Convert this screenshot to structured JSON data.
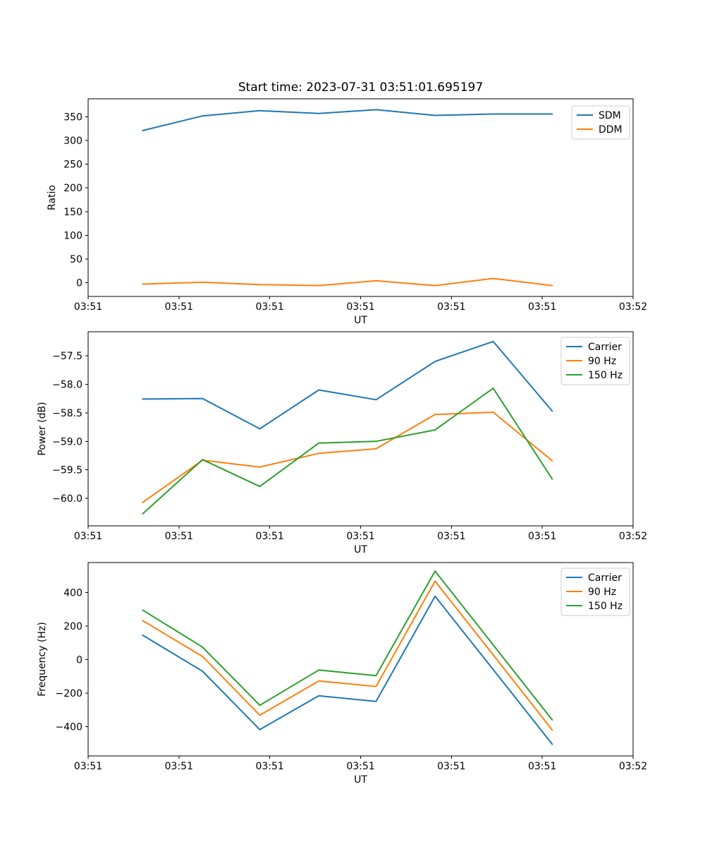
{
  "figure": {
    "title": "Start time: 2023-07-31 03:51:01.695197",
    "background": "#ffffff",
    "text_color": "#000000",
    "spine_color": "#000000",
    "legend_border_color": "#cccccc"
  },
  "chart_data": [
    {
      "type": "line",
      "title": "Start time: 2023-07-31 03:51:01.695197",
      "xlabel": "UT",
      "ylabel": "Ratio",
      "grid": false,
      "legend_position": "upper right",
      "xlim": [
        0,
        60
      ],
      "ylim": [
        -29,
        388
      ],
      "x_ticks": [
        {
          "v": 0,
          "label": "03:51"
        },
        {
          "v": 10,
          "label": "03:51"
        },
        {
          "v": 20,
          "label": "03:51"
        },
        {
          "v": 30,
          "label": "03:51"
        },
        {
          "v": 40,
          "label": "03:51"
        },
        {
          "v": 50,
          "label": "03:51"
        },
        {
          "v": 60,
          "label": "03:52"
        }
      ],
      "y_ticks": [
        {
          "v": 0,
          "label": "0"
        },
        {
          "v": 50,
          "label": "50"
        },
        {
          "v": 100,
          "label": "100"
        },
        {
          "v": 150,
          "label": "150"
        },
        {
          "v": 200,
          "label": "200"
        },
        {
          "v": 250,
          "label": "250"
        },
        {
          "v": 300,
          "label": "300"
        },
        {
          "v": 350,
          "label": "350"
        }
      ],
      "x": [
        6.0,
        12.6,
        18.9,
        25.4,
        31.7,
        38.2,
        44.6,
        51.1
      ],
      "series": [
        {
          "name": "SDM",
          "color": "#1f77b4",
          "values": [
            321,
            352,
            363,
            357,
            365,
            353,
            356,
            356
          ]
        },
        {
          "name": "DDM",
          "color": "#ff7f0e",
          "values": [
            -3,
            1,
            -4,
            -6,
            4,
            -6,
            9,
            -6
          ]
        }
      ]
    },
    {
      "type": "line",
      "title": "",
      "xlabel": "UT",
      "ylabel": "Power (dB)",
      "grid": false,
      "legend_position": "upper right",
      "xlim": [
        0,
        60
      ],
      "ylim": [
        -60.48,
        -57.08
      ],
      "x_ticks": [
        {
          "v": 0,
          "label": "03:51"
        },
        {
          "v": 10,
          "label": "03:51"
        },
        {
          "v": 20,
          "label": "03:51"
        },
        {
          "v": 30,
          "label": "03:51"
        },
        {
          "v": 40,
          "label": "03:51"
        },
        {
          "v": 50,
          "label": "03:51"
        },
        {
          "v": 60,
          "label": "03:52"
        }
      ],
      "y_ticks": [
        {
          "v": -57.5,
          "label": "−57.5"
        },
        {
          "v": -58.0,
          "label": "−58.0"
        },
        {
          "v": -58.5,
          "label": "−58.5"
        },
        {
          "v": -59.0,
          "label": "−59.0"
        },
        {
          "v": -59.5,
          "label": "−59.5"
        },
        {
          "v": -60.0,
          "label": "−60.0"
        }
      ],
      "x": [
        6.0,
        12.6,
        18.9,
        25.4,
        31.7,
        38.2,
        44.6,
        51.1
      ],
      "series": [
        {
          "name": "Carrier",
          "color": "#1f77b4",
          "values": [
            -58.26,
            -58.25,
            -58.78,
            -58.1,
            -58.27,
            -57.6,
            -57.25,
            -58.47
          ]
        },
        {
          "name": "90 Hz",
          "color": "#ff7f0e",
          "values": [
            -60.07,
            -59.33,
            -59.45,
            -59.21,
            -59.13,
            -58.53,
            -58.49,
            -59.34
          ]
        },
        {
          "name": "150 Hz",
          "color": "#2ca02c",
          "values": [
            -60.27,
            -59.32,
            -59.79,
            -59.03,
            -59.0,
            -58.8,
            -58.07,
            -59.66
          ]
        }
      ]
    },
    {
      "type": "line",
      "title": "",
      "xlabel": "UT",
      "ylabel": "Frequency (Hz)",
      "grid": false,
      "legend_position": "upper right",
      "xlim": [
        0,
        60
      ],
      "ylim": [
        -575,
        578
      ],
      "x_ticks": [
        {
          "v": 0,
          "label": "03:51"
        },
        {
          "v": 10,
          "label": "03:51"
        },
        {
          "v": 20,
          "label": "03:51"
        },
        {
          "v": 30,
          "label": "03:51"
        },
        {
          "v": 40,
          "label": "03:51"
        },
        {
          "v": 50,
          "label": "03:51"
        },
        {
          "v": 60,
          "label": "03:52"
        }
      ],
      "y_ticks": [
        {
          "v": 400,
          "label": "400"
        },
        {
          "v": 200,
          "label": "200"
        },
        {
          "v": 0,
          "label": "0"
        },
        {
          "v": -200,
          "label": "−200"
        },
        {
          "v": -400,
          "label": "−400"
        }
      ],
      "x": [
        6.0,
        12.6,
        18.9,
        25.4,
        31.7,
        38.2,
        44.6,
        51.1
      ],
      "series": [
        {
          "name": "Carrier",
          "color": "#1f77b4",
          "values": [
            145,
            -70,
            -418,
            -216,
            -250,
            377,
            -60,
            -505
          ]
        },
        {
          "name": "90 Hz",
          "color": "#ff7f0e",
          "values": [
            232,
            18,
            -332,
            -128,
            -161,
            467,
            27,
            -420
          ]
        },
        {
          "name": "150 Hz",
          "color": "#2ca02c",
          "values": [
            295,
            74,
            -273,
            -63,
            -96,
            527,
            87,
            -360
          ]
        }
      ]
    }
  ]
}
